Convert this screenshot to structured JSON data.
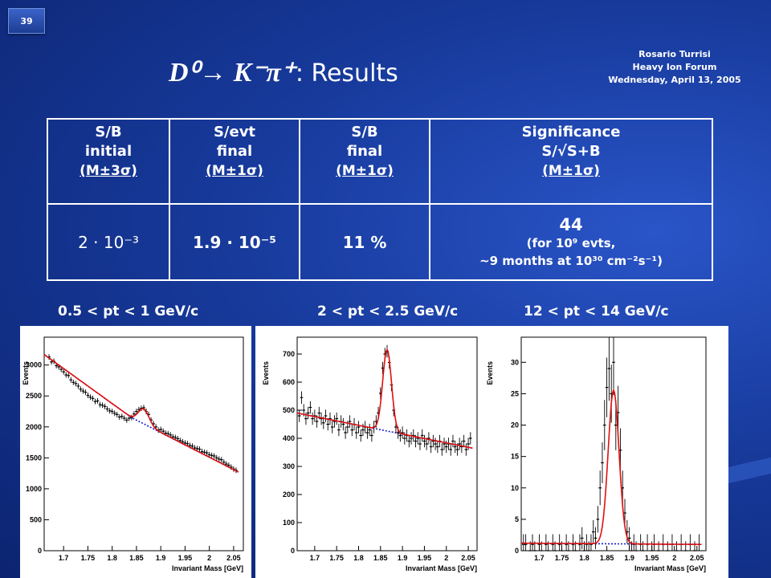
{
  "slide_number": "39",
  "title": {
    "reaction": "D⁰→ K⁻π⁺",
    "suffix": ": Results"
  },
  "meta": {
    "author": "Rosario Turrisi",
    "event": "Heavy Ion Forum",
    "date": "Wednesday, April 13, 2005"
  },
  "table": {
    "headers": [
      {
        "line1": "S/B",
        "line2": "initial",
        "line3": "(M±3σ)"
      },
      {
        "line1": "S/evt",
        "line2": "final",
        "line3": "(M±1σ)"
      },
      {
        "line1": "S/B",
        "line2": "final",
        "line3": "(M±1σ)"
      },
      {
        "line1": "Significance",
        "line2": "S/√S+B",
        "line3": "(M±1σ)"
      }
    ],
    "values": {
      "sb_initial": "2 · 10⁻³",
      "s_evt_final": "1.9 · 10⁻⁵",
      "sb_final": "11 %",
      "significance": "44",
      "note1": "(for 10⁹ evts,",
      "note2": "~9 months at 10³⁰ cm⁻²s⁻¹)"
    }
  },
  "colors": {
    "fit": "#e01010",
    "background_fit": "#1a1acc",
    "points": "#000000"
  },
  "chart_data": [
    {
      "type": "scatter",
      "panel_label": "0.5 < pt < 1 GeV/c",
      "xlabel": "Invariant Mass [GeV]",
      "ylabel": "Events",
      "xlim": [
        1.66,
        2.07
      ],
      "ylim": [
        0,
        3450
      ],
      "xticks": [
        "1.7",
        "1.75",
        "1.8",
        "1.85",
        "1.9",
        "1.95",
        "2",
        "2.05"
      ],
      "yticks": [
        0,
        500,
        1000,
        1500,
        2000,
        2500,
        3000
      ],
      "background": {
        "x": [
          1.66,
          1.84,
          2.06
        ],
        "y": [
          3170,
          2150,
          1270
        ]
      },
      "peak": {
        "mean": 1.865,
        "sigma": 0.011,
        "amp": 240
      },
      "points": [
        [
          1.67,
          3130
        ],
        [
          1.675,
          3050
        ],
        [
          1.68,
          3060
        ],
        [
          1.685,
          2990
        ],
        [
          1.69,
          2970
        ],
        [
          1.695,
          2930
        ],
        [
          1.7,
          2890
        ],
        [
          1.705,
          2840
        ],
        [
          1.71,
          2830
        ],
        [
          1.715,
          2760
        ],
        [
          1.72,
          2720
        ],
        [
          1.725,
          2700
        ],
        [
          1.73,
          2660
        ],
        [
          1.735,
          2610
        ],
        [
          1.74,
          2580
        ],
        [
          1.745,
          2560
        ],
        [
          1.75,
          2510
        ],
        [
          1.755,
          2480
        ],
        [
          1.76,
          2460
        ],
        [
          1.765,
          2410
        ],
        [
          1.77,
          2420
        ],
        [
          1.775,
          2360
        ],
        [
          1.78,
          2350
        ],
        [
          1.785,
          2330
        ],
        [
          1.79,
          2290
        ],
        [
          1.795,
          2260
        ],
        [
          1.8,
          2250
        ],
        [
          1.805,
          2220
        ],
        [
          1.81,
          2200
        ],
        [
          1.815,
          2160
        ],
        [
          1.82,
          2170
        ],
        [
          1.825,
          2140
        ],
        [
          1.83,
          2110
        ],
        [
          1.835,
          2140
        ],
        [
          1.84,
          2150
        ],
        [
          1.845,
          2210
        ],
        [
          1.85,
          2250
        ],
        [
          1.855,
          2280
        ],
        [
          1.86,
          2300
        ],
        [
          1.865,
          2310
        ],
        [
          1.87,
          2250
        ],
        [
          1.875,
          2200
        ],
        [
          1.88,
          2110
        ],
        [
          1.885,
          2050
        ],
        [
          1.89,
          2000
        ],
        [
          1.895,
          1950
        ],
        [
          1.9,
          1960
        ],
        [
          1.905,
          1930
        ],
        [
          1.91,
          1900
        ],
        [
          1.915,
          1890
        ],
        [
          1.92,
          1870
        ],
        [
          1.925,
          1840
        ],
        [
          1.93,
          1830
        ],
        [
          1.935,
          1810
        ],
        [
          1.94,
          1780
        ],
        [
          1.945,
          1760
        ],
        [
          1.95,
          1740
        ],
        [
          1.955,
          1730
        ],
        [
          1.96,
          1700
        ],
        [
          1.965,
          1690
        ],
        [
          1.97,
          1660
        ],
        [
          1.975,
          1650
        ],
        [
          1.98,
          1640
        ],
        [
          1.985,
          1600
        ],
        [
          1.99,
          1590
        ],
        [
          1.995,
          1580
        ],
        [
          2.0,
          1550
        ],
        [
          2.005,
          1540
        ],
        [
          2.01,
          1530
        ],
        [
          2.015,
          1500
        ],
        [
          2.02,
          1480
        ],
        [
          2.025,
          1470
        ],
        [
          2.03,
          1430
        ],
        [
          2.035,
          1400
        ],
        [
          2.04,
          1380
        ],
        [
          2.045,
          1350
        ],
        [
          2.05,
          1320
        ],
        [
          2.055,
          1300
        ]
      ],
      "err": 45
    },
    {
      "type": "scatter",
      "panel_label": "2 < pt < 2.5 GeV/c",
      "xlabel": "Invariant Mass [GeV]",
      "ylabel": "Events",
      "xlim": [
        1.66,
        2.07
      ],
      "ylim": [
        0,
        760
      ],
      "xticks": [
        "1.7",
        "1.75",
        "1.8",
        "1.85",
        "1.9",
        "1.95",
        "2",
        "2.05"
      ],
      "yticks": [
        0,
        100,
        200,
        300,
        400,
        500,
        600,
        700
      ],
      "background": {
        "x": [
          1.66,
          2.06
        ],
        "y": [
          490,
          365
        ]
      },
      "peak": {
        "mean": 1.865,
        "sigma": 0.01,
        "amp": 290
      },
      "points": [
        [
          1.665,
          480
        ],
        [
          1.67,
          545
        ],
        [
          1.675,
          500
        ],
        [
          1.68,
          470
        ],
        [
          1.685,
          490
        ],
        [
          1.69,
          510
        ],
        [
          1.695,
          470
        ],
        [
          1.7,
          480
        ],
        [
          1.705,
          460
        ],
        [
          1.71,
          490
        ],
        [
          1.715,
          470
        ],
        [
          1.72,
          455
        ],
        [
          1.725,
          480
        ],
        [
          1.73,
          450
        ],
        [
          1.735,
          470
        ],
        [
          1.74,
          440
        ],
        [
          1.745,
          460
        ],
        [
          1.75,
          470
        ],
        [
          1.755,
          430
        ],
        [
          1.76,
          460
        ],
        [
          1.765,
          450
        ],
        [
          1.77,
          420
        ],
        [
          1.775,
          440
        ],
        [
          1.78,
          460
        ],
        [
          1.785,
          430
        ],
        [
          1.79,
          450
        ],
        [
          1.795,
          420
        ],
        [
          1.8,
          440
        ],
        [
          1.805,
          410
        ],
        [
          1.81,
          430
        ],
        [
          1.815,
          440
        ],
        [
          1.82,
          420
        ],
        [
          1.825,
          430
        ],
        [
          1.83,
          410
        ],
        [
          1.835,
          440
        ],
        [
          1.84,
          460
        ],
        [
          1.845,
          490
        ],
        [
          1.85,
          560
        ],
        [
          1.855,
          650
        ],
        [
          1.86,
          700
        ],
        [
          1.865,
          710
        ],
        [
          1.87,
          670
        ],
        [
          1.875,
          590
        ],
        [
          1.88,
          500
        ],
        [
          1.885,
          440
        ],
        [
          1.89,
          420
        ],
        [
          1.895,
          410
        ],
        [
          1.9,
          420
        ],
        [
          1.905,
          400
        ],
        [
          1.91,
          410
        ],
        [
          1.915,
          390
        ],
        [
          1.92,
          400
        ],
        [
          1.925,
          410
        ],
        [
          1.93,
          390
        ],
        [
          1.935,
          400
        ],
        [
          1.94,
          380
        ],
        [
          1.945,
          410
        ],
        [
          1.95,
          390
        ],
        [
          1.955,
          380
        ],
        [
          1.96,
          400
        ],
        [
          1.965,
          370
        ],
        [
          1.97,
          390
        ],
        [
          1.975,
          380
        ],
        [
          1.98,
          370
        ],
        [
          1.985,
          390
        ],
        [
          1.99,
          360
        ],
        [
          1.995,
          380
        ],
        [
          2.0,
          370
        ],
        [
          2.005,
          380
        ],
        [
          2.01,
          360
        ],
        [
          2.015,
          390
        ],
        [
          2.02,
          370
        ],
        [
          2.025,
          360
        ],
        [
          2.03,
          380
        ],
        [
          2.035,
          370
        ],
        [
          2.04,
          390
        ],
        [
          2.045,
          360
        ],
        [
          2.05,
          380
        ],
        [
          2.055,
          400
        ]
      ],
      "err": 22
    },
    {
      "type": "scatter",
      "panel_label": "12 < pt < 14 GeV/c",
      "xlabel": "Invariant Mass [GeV]",
      "ylabel": "Events",
      "xlim": [
        1.66,
        2.07
      ],
      "ylim": [
        0,
        34
      ],
      "xticks": [
        "1.7",
        "1.75",
        "1.8",
        "1.85",
        "1.9",
        "1.95",
        "2",
        "2.05"
      ],
      "yticks": [
        0,
        5,
        10,
        15,
        20,
        25,
        30
      ],
      "background": {
        "x": [
          1.66,
          2.06
        ],
        "y": [
          1.2,
          1.0
        ]
      },
      "peak": {
        "mean": 1.865,
        "sigma": 0.012,
        "amp": 24.5
      },
      "points": [
        [
          1.665,
          1
        ],
        [
          1.67,
          1
        ],
        [
          1.68,
          0
        ],
        [
          1.685,
          1
        ],
        [
          1.69,
          0
        ],
        [
          1.7,
          1
        ],
        [
          1.705,
          0
        ],
        [
          1.715,
          1
        ],
        [
          1.72,
          0
        ],
        [
          1.73,
          1
        ],
        [
          1.735,
          0
        ],
        [
          1.745,
          1
        ],
        [
          1.75,
          0
        ],
        [
          1.76,
          1
        ],
        [
          1.765,
          0
        ],
        [
          1.775,
          1
        ],
        [
          1.78,
          0
        ],
        [
          1.79,
          1
        ],
        [
          1.795,
          2
        ],
        [
          1.8,
          0
        ],
        [
          1.805,
          1
        ],
        [
          1.81,
          0
        ],
        [
          1.815,
          1
        ],
        [
          1.82,
          3
        ],
        [
          1.825,
          2
        ],
        [
          1.83,
          5
        ],
        [
          1.835,
          10
        ],
        [
          1.84,
          14
        ],
        [
          1.845,
          20
        ],
        [
          1.85,
          26
        ],
        [
          1.855,
          29
        ],
        [
          1.86,
          25
        ],
        [
          1.865,
          30
        ],
        [
          1.87,
          20
        ],
        [
          1.875,
          22
        ],
        [
          1.88,
          16
        ],
        [
          1.885,
          10
        ],
        [
          1.89,
          6
        ],
        [
          1.895,
          3
        ],
        [
          1.9,
          2
        ],
        [
          1.905,
          0
        ],
        [
          1.91,
          1
        ],
        [
          1.915,
          0
        ],
        [
          1.925,
          1
        ],
        [
          1.93,
          0
        ],
        [
          1.94,
          1
        ],
        [
          1.95,
          0
        ],
        [
          1.955,
          1
        ],
        [
          1.965,
          0
        ],
        [
          1.975,
          1
        ],
        [
          1.985,
          0
        ],
        [
          1.995,
          1
        ],
        [
          2.005,
          0
        ],
        [
          2.015,
          1
        ],
        [
          2.025,
          0
        ],
        [
          2.035,
          1
        ],
        [
          2.045,
          0
        ],
        [
          2.055,
          1
        ]
      ],
      "err": 1.5
    }
  ]
}
